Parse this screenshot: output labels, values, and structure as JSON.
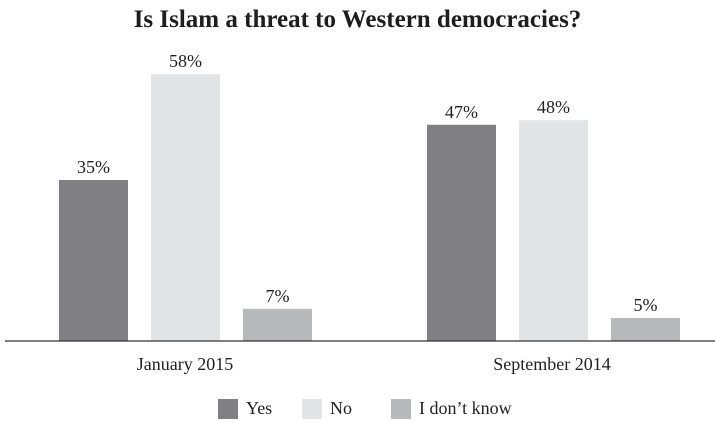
{
  "chart_data": {
    "type": "bar",
    "title": "Is Islam a threat to Western democracies?",
    "categories": [
      "January 2015",
      "September 2014"
    ],
    "series": [
      {
        "name": "Yes",
        "values": [
          35,
          47
        ],
        "labels": [
          "35%",
          "47%"
        ],
        "color": "#808084"
      },
      {
        "name": "No",
        "values": [
          58,
          48
        ],
        "labels": [
          "58%",
          "48%"
        ],
        "color": "#e3e4e6"
      },
      {
        "name": "I don’t know",
        "values": [
          7,
          5
        ],
        "labels": [
          "7%",
          "5%"
        ],
        "color": "#b8b9bb"
      }
    ],
    "ylim": [
      0,
      70
    ],
    "grid": false,
    "legend": "bottom"
  }
}
